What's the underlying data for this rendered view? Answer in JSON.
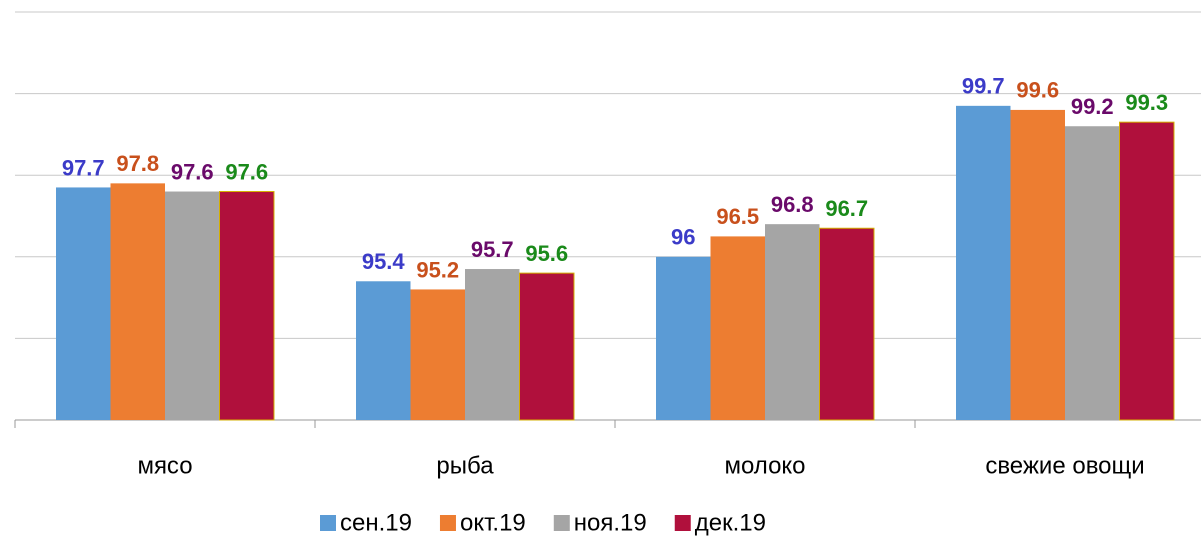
{
  "chart_data": {
    "type": "bar",
    "categories": [
      "мясо",
      "рыба",
      "молоко",
      "свежие овощи"
    ],
    "series": [
      {
        "name": "сен.19",
        "color": "#5b9bd5",
        "label_color": "#3b3bc8",
        "values": [
          97.7,
          95.4,
          96,
          99.7
        ]
      },
      {
        "name": "окт.19",
        "color": "#ed7d31",
        "label_color": "#c8501c",
        "values": [
          97.8,
          95.2,
          96.5,
          99.6
        ]
      },
      {
        "name": "ноя.19",
        "color": "#a5a5a5",
        "label_color": "#6a0a6a",
        "values": [
          97.6,
          95.7,
          96.8,
          99.2
        ]
      },
      {
        "name": "дек.19",
        "color": "#b0103c",
        "label_color": "#1a8a1a",
        "values": [
          97.6,
          95.6,
          96.7,
          99.3
        ]
      }
    ],
    "ylim": [
      92,
      102
    ],
    "yticks": [
      92,
      94,
      96,
      98,
      100,
      102
    ],
    "grid": true,
    "legend": "bottom"
  }
}
